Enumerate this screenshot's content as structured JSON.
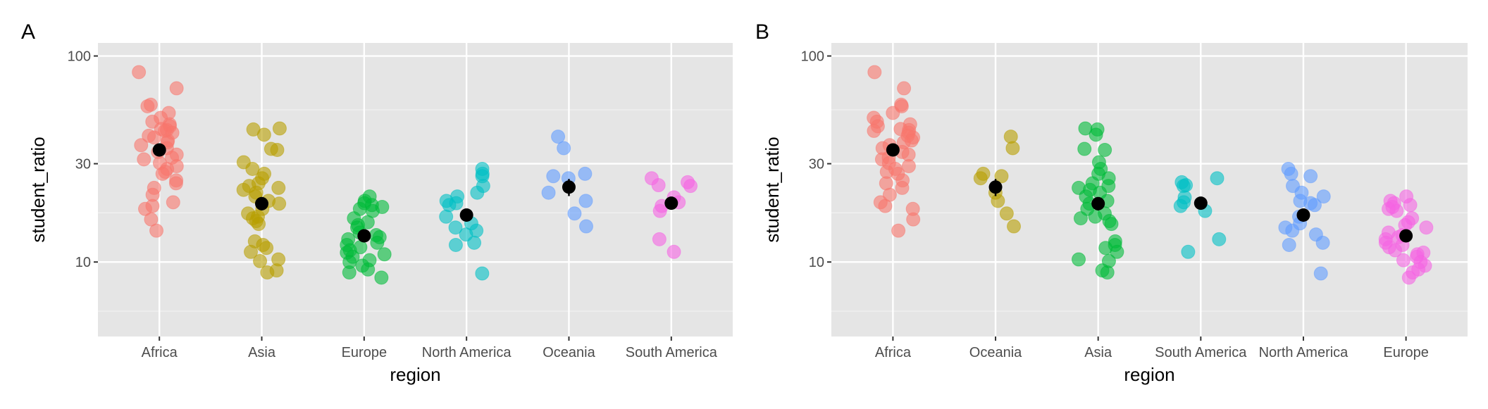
{
  "chart_data": [
    {
      "panel_label": "A",
      "type": "scatter",
      "subtype": "jittered strip plot with mean and standard-error bars",
      "xlabel": "region",
      "ylabel": "student_ratio",
      "y_scale": "log10",
      "ylim": [
        4.35,
        115.7
      ],
      "y_ticks": [
        {
          "value": 10,
          "label": "10"
        },
        {
          "value": 30,
          "label": "30"
        },
        {
          "value": 100,
          "label": "100"
        }
      ],
      "grid": true,
      "background": "#E5E5E5",
      "categories": [
        "Africa",
        "Asia",
        "Europe",
        "North America",
        "Oceania",
        "South America"
      ],
      "colors": [
        "#F8766D",
        "#B79F00",
        "#00BA38",
        "#00BFC4",
        "#619CFF",
        "#F564E3"
      ],
      "mean_color": "#000000"
    },
    {
      "panel_label": "B",
      "type": "scatter",
      "subtype": "jittered strip plot with mean and standard-error bars, regions ordered by mean",
      "xlabel": "region",
      "ylabel": "student_ratio",
      "y_scale": "log10",
      "ylim": [
        4.35,
        115.7
      ],
      "y_ticks": [
        {
          "value": 10,
          "label": "10"
        },
        {
          "value": 30,
          "label": "30"
        },
        {
          "value": 100,
          "label": "100"
        }
      ],
      "grid": true,
      "background": "#E5E5E5",
      "categories": [
        "Africa",
        "Oceania",
        "Asia",
        "South America",
        "North America",
        "Europe"
      ],
      "colors": [
        "#F8766D",
        "#B79F00",
        "#00BA38",
        "#00BFC4",
        "#619CFF",
        "#F564E3"
      ],
      "mean_color": "#000000"
    }
  ],
  "region_values": {
    "Africa": {
      "mean": 35,
      "se": 2.0,
      "points": [
        83.5,
        69.7,
        58,
        57,
        52.9,
        50.1,
        48,
        46.6,
        45.6,
        44.2,
        43.7,
        43.3,
        42.4,
        41,
        40.2,
        38.9,
        38.1,
        36.9,
        35.7,
        34.2,
        33.2,
        32.1,
        31.5,
        30.2,
        29.2,
        28.3,
        27.4,
        26.8,
        24.9,
        24.1,
        22.9,
        21.2,
        19.5,
        18.7,
        18.1,
        16.1,
        14.2
      ]
    },
    "Asia": {
      "mean": 19.2,
      "se": 1.4,
      "points": [
        44,
        44.5,
        41.5,
        35.4,
        35,
        30.5,
        28.3,
        26.8,
        25.5,
        24.1,
        23.4,
        22.9,
        22.4,
        21.7,
        20.8,
        19.8,
        19.2,
        18.1,
        17.2,
        16.6,
        16.3,
        15.8,
        15.3,
        12.6,
        12.1,
        11.7,
        11.2,
        10.3,
        10.1,
        9.1,
        8.9
      ]
    },
    "Europe": {
      "mean": 13.4,
      "se": 0.6,
      "points": [
        20.8,
        19.8,
        19.3,
        18.9,
        18.5,
        18.1,
        17.7,
        16.3,
        15.6,
        15.1,
        14.7,
        13.9,
        13.5,
        13.2,
        12.9,
        12.4,
        12.1,
        11.8,
        11.4,
        11.1,
        10.9,
        10.6,
        10.2,
        10,
        9.6,
        9.2,
        8.9,
        8.4
      ]
    },
    "North America": {
      "mean": 16.9,
      "se": 1.2,
      "points": [
        28.3,
        26.8,
        26.1,
        23.4,
        21.7,
        20.8,
        19.8,
        19.3,
        18.9,
        16.6,
        15.4,
        14.7,
        14.2,
        13.6,
        12.4,
        12.1,
        8.8
      ]
    },
    "Oceania": {
      "mean": 23.1,
      "se": 2.2,
      "points": [
        40.6,
        35.7,
        26.8,
        26.1,
        25.5,
        21.7,
        19.8,
        17.2,
        14.9
      ]
    },
    "South America": {
      "mean": 19.3,
      "se": 1.3,
      "points": [
        25.5,
        24.4,
        23.6,
        23.4,
        20.6,
        19.5,
        18.7,
        17.7,
        12.9,
        11.2
      ]
    }
  }
}
